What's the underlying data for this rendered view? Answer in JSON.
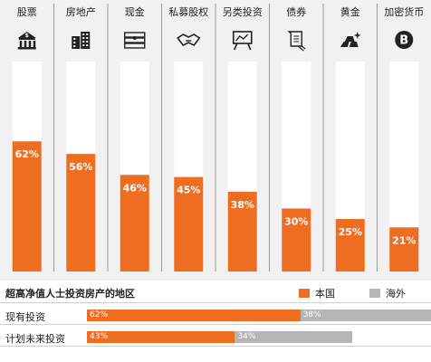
{
  "chart_data": {
    "type": "bar",
    "categories": [
      "股票",
      "房地产",
      "现金",
      "私募股权",
      "另类投资",
      "债券",
      "黄金",
      "加密货币"
    ],
    "icons": [
      "bank-dollar-icon",
      "buildings-icon",
      "cash-stack-icon",
      "handshake-icon",
      "easel-chart-icon",
      "scroll-icon",
      "gold-bars-icon",
      "bitcoin-icon"
    ],
    "values": [
      62,
      56,
      46,
      45,
      38,
      30,
      25,
      21
    ],
    "value_labels": [
      "62%",
      "56%",
      "46%",
      "45%",
      "38%",
      "30%",
      "25%",
      "21%"
    ],
    "ylim": [
      0,
      100
    ],
    "bar_color": "#ef6d21"
  },
  "panel": {
    "title": "超高净值人士投资房产的地区",
    "legend": [
      {
        "label": "本国",
        "color": "#ef6d21"
      },
      {
        "label": "海外",
        "color": "#b5b5b5"
      }
    ],
    "rows": [
      {
        "label": "现有投资",
        "domestic": 62,
        "overseas": 38,
        "domestic_label": "62%",
        "overseas_label": "38%"
      },
      {
        "label": "计划未来投资",
        "domestic": 43,
        "overseas": 34,
        "domestic_label": "43%",
        "overseas_label": "34%"
      }
    ]
  }
}
